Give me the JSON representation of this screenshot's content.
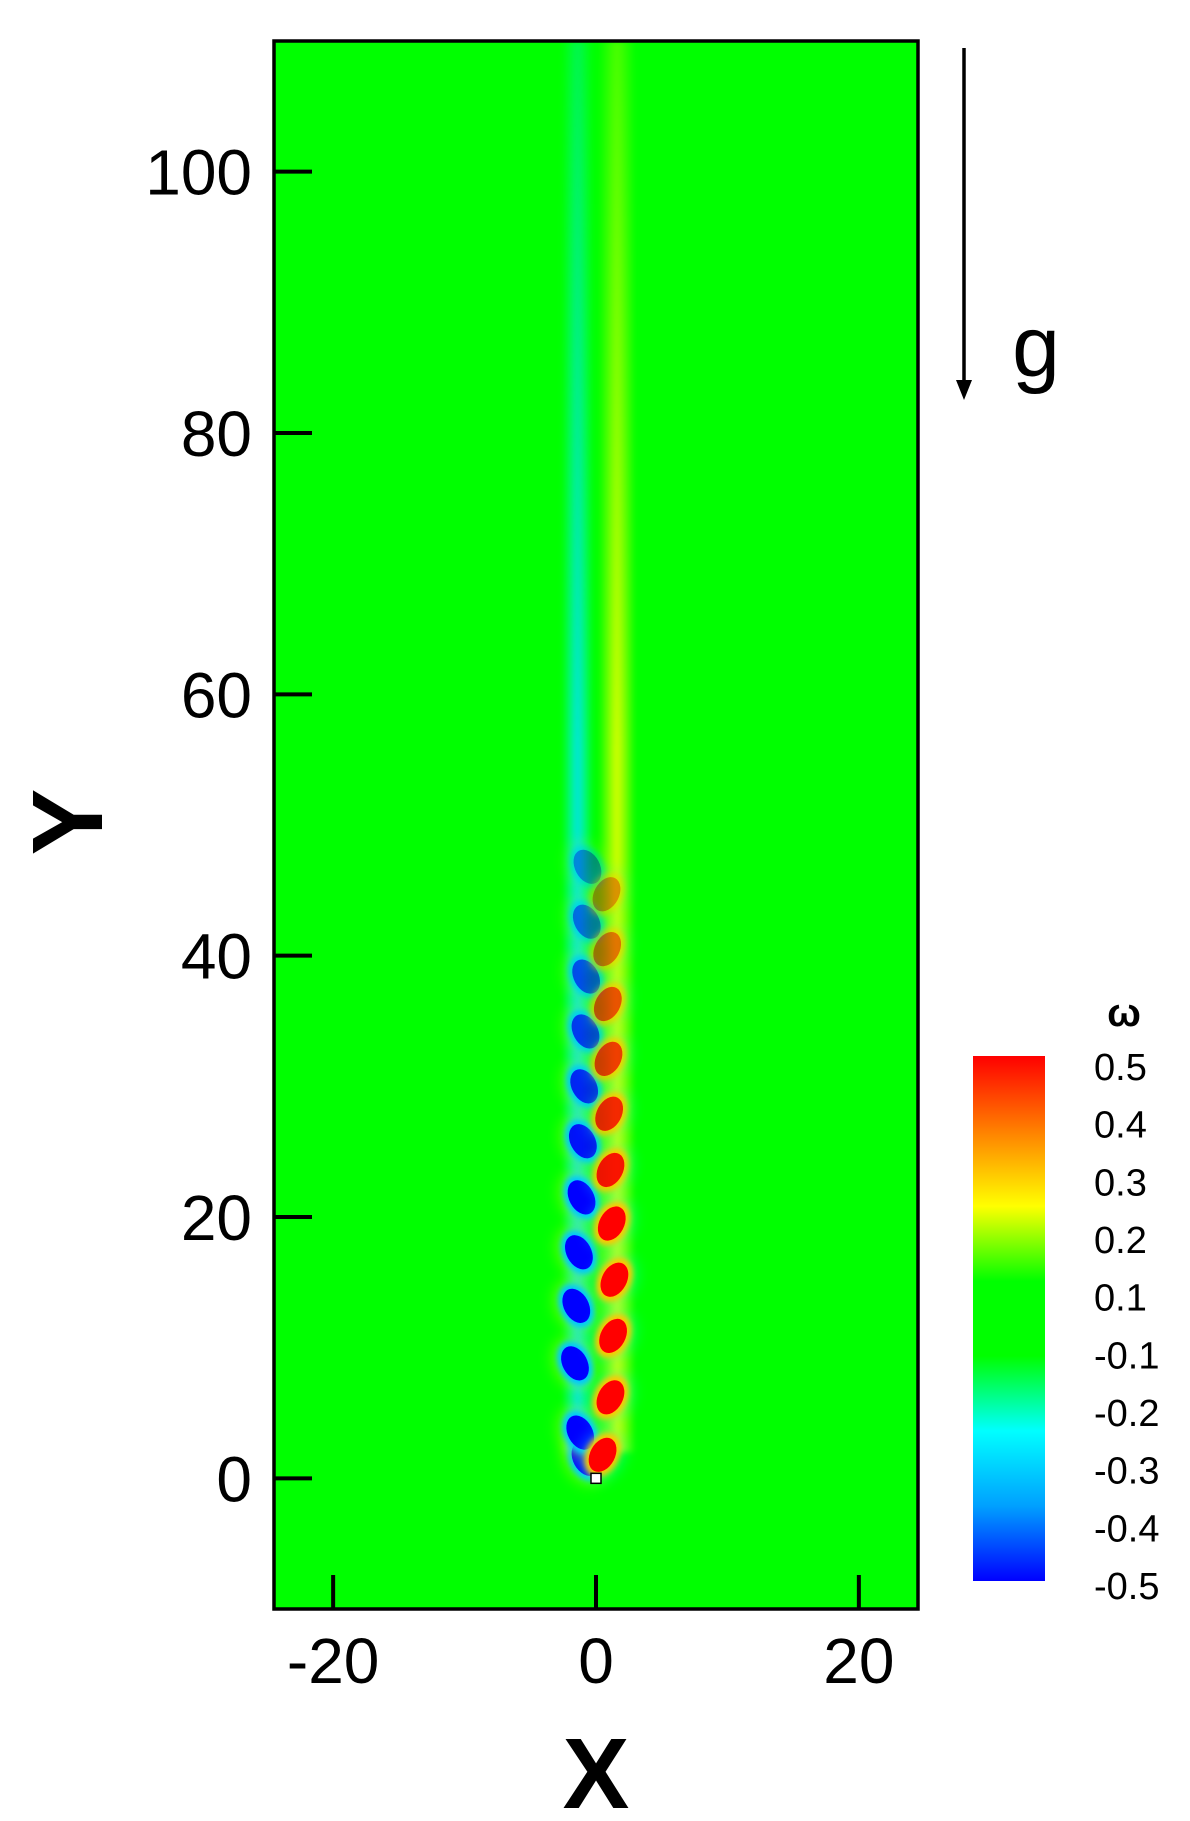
{
  "chart_data": {
    "type": "heatmap",
    "title": "",
    "xlabel": "X",
    "ylabel": "Y",
    "xlim": [
      -24.5,
      24.5
    ],
    "ylim": [
      -10,
      110
    ],
    "xticks": [
      -20,
      0,
      20
    ],
    "yticks": [
      0,
      20,
      40,
      60,
      80,
      100
    ],
    "xtick_labels": [
      "-20",
      "0",
      "20"
    ],
    "ytick_labels": [
      "0",
      "20",
      "40",
      "60",
      "80",
      "100"
    ],
    "colorbar": {
      "title": "ω",
      "min": -0.5,
      "max": 0.5,
      "labels": [
        "0.5",
        "0.4",
        "0.3",
        "0.2",
        "0.1",
        "-0.1",
        "-0.2",
        "-0.3",
        "-0.4",
        "-0.5"
      ],
      "colors": [
        "#0000ff",
        "#00a0ff",
        "#00ffff",
        "#00ff00",
        "#00ff00",
        "#ffff00",
        "#ff8000",
        "#ff0000"
      ]
    },
    "background_color": "#00ff00",
    "annotation": {
      "label": "g",
      "direction": "down"
    },
    "obstacle": {
      "x": 0,
      "y": 0,
      "shape": "square"
    },
    "wake": {
      "negative_vortices": [
        {
          "x": -0.8,
          "y": 1.5,
          "w": 0.6
        },
        {
          "x": -1.2,
          "y": 3.5,
          "w": 0.6
        },
        {
          "x": -1.6,
          "y": 8.8,
          "w": 0.6
        },
        {
          "x": -1.5,
          "y": 13.2,
          "w": 0.6
        },
        {
          "x": -1.3,
          "y": 17.3,
          "w": 0.6
        },
        {
          "x": -1.1,
          "y": 21.5,
          "w": 0.6
        },
        {
          "x": -1.0,
          "y": 25.8,
          "w": 0.55
        },
        {
          "x": -0.9,
          "y": 30.0,
          "w": 0.5
        },
        {
          "x": -0.8,
          "y": 34.2,
          "w": 0.45
        },
        {
          "x": -0.75,
          "y": 38.4,
          "w": 0.4
        },
        {
          "x": -0.7,
          "y": 42.6,
          "w": 0.32
        },
        {
          "x": -0.65,
          "y": 46.8,
          "w": 0.25
        }
      ],
      "positive_vortices": [
        {
          "x": 0.5,
          "y": 1.8,
          "w": 0.6
        },
        {
          "x": 1.1,
          "y": 6.2,
          "w": 0.6
        },
        {
          "x": 1.3,
          "y": 10.9,
          "w": 0.6
        },
        {
          "x": 1.4,
          "y": 15.2,
          "w": 0.6
        },
        {
          "x": 1.2,
          "y": 19.5,
          "w": 0.6
        },
        {
          "x": 1.1,
          "y": 23.6,
          "w": 0.55
        },
        {
          "x": 1.0,
          "y": 27.9,
          "w": 0.5
        },
        {
          "x": 0.95,
          "y": 32.1,
          "w": 0.45
        },
        {
          "x": 0.9,
          "y": 36.3,
          "w": 0.4
        },
        {
          "x": 0.85,
          "y": 40.5,
          "w": 0.32
        },
        {
          "x": 0.8,
          "y": 44.7,
          "w": 0.25
        }
      ]
    }
  }
}
